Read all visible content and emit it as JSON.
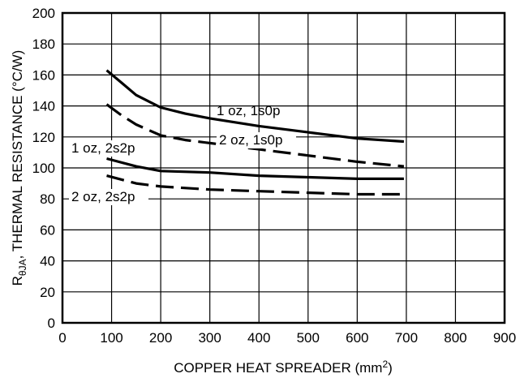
{
  "chart_data": {
    "type": "line",
    "xlabel": {
      "main": "COPPER HEAT SPREADER (mm",
      "sup": "2",
      "close": ")"
    },
    "ylabel": {
      "prefix": "R",
      "sub": "θJA",
      "rest": ", THERMAL RESISTANCE (°C/W)"
    },
    "xlim": [
      0,
      900
    ],
    "ylim": [
      0,
      200
    ],
    "xticks": [
      0,
      100,
      200,
      300,
      400,
      500,
      600,
      700,
      800,
      900
    ],
    "yticks": [
      0,
      20,
      40,
      60,
      80,
      100,
      120,
      140,
      160,
      180,
      200
    ],
    "grid": true,
    "series": [
      {
        "name": "1 oz, 1s0p",
        "style": "solid",
        "x": [
          90,
          120,
          150,
          200,
          250,
          300,
          400,
          500,
          600,
          695
        ],
        "y": [
          163,
          155,
          147,
          139,
          135,
          132,
          127,
          123,
          119,
          117
        ]
      },
      {
        "name": "2 oz, 1s0p",
        "style": "dashed",
        "x": [
          90,
          120,
          150,
          200,
          250,
          300,
          400,
          500,
          600,
          695
        ],
        "y": [
          141,
          134,
          128,
          121,
          118,
          116,
          112,
          108,
          104,
          101
        ]
      },
      {
        "name": "1 oz, 2s2p",
        "style": "solid",
        "x": [
          90,
          150,
          200,
          300,
          400,
          500,
          600,
          695
        ],
        "y": [
          106,
          101,
          98,
          97,
          95,
          94,
          93,
          93
        ]
      },
      {
        "name": "2 oz, 2s2p",
        "style": "dashed",
        "x": [
          90,
          150,
          200,
          300,
          400,
          500,
          600,
          695
        ],
        "y": [
          95,
          90,
          88,
          86,
          85,
          84,
          83,
          83
        ]
      }
    ]
  }
}
